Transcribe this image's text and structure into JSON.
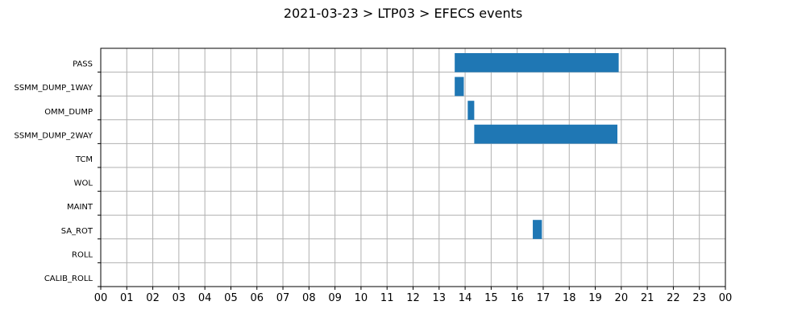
{
  "chart_data": {
    "type": "bar",
    "orientation": "horizontal",
    "title": "2021-03-23 > LTP03 > EFECS events",
    "xlabel": "",
    "ylabel": "",
    "categories": [
      "PASS",
      "SSMM_DUMP_1WAY",
      "OMM_DUMP",
      "SSMM_DUMP_2WAY",
      "TCM",
      "WOL",
      "MAINT",
      "SA_ROT",
      "ROLL",
      "CALIB_ROLL"
    ],
    "x_ticks": [
      "00",
      "01",
      "02",
      "03",
      "04",
      "05",
      "06",
      "07",
      "08",
      "09",
      "10",
      "11",
      "12",
      "13",
      "14",
      "15",
      "16",
      "17",
      "18",
      "19",
      "20",
      "21",
      "22",
      "23",
      "00"
    ],
    "xlim": [
      0,
      24
    ],
    "grid": true,
    "bar_color": "#1f77b4",
    "series": [
      {
        "events": [
          {
            "category": "PASS",
            "start": 13.6,
            "end": 19.9
          },
          {
            "category": "SSMM_DUMP_1WAY",
            "start": 13.6,
            "end": 13.95
          },
          {
            "category": "OMM_DUMP",
            "start": 14.1,
            "end": 14.35
          },
          {
            "category": "SSMM_DUMP_2WAY",
            "start": 14.35,
            "end": 19.85
          },
          {
            "category": "SA_ROT",
            "start": 16.6,
            "end": 16.95
          }
        ]
      }
    ]
  }
}
